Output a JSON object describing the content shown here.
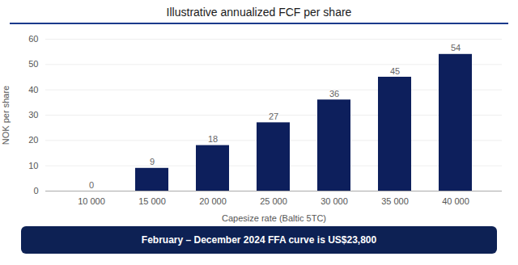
{
  "chart_data": {
    "type": "bar",
    "title": "Illustrative annualized FCF per share",
    "categories": [
      "10 000",
      "15 000",
      "20 000",
      "25 000",
      "30 000",
      "35 000",
      "40 000"
    ],
    "values": [
      0,
      9,
      18,
      27,
      36,
      45,
      54
    ],
    "color": "#0d1f5c",
    "xlabel": "Capesize rate (Baltic 5TC)",
    "ylabel": "NOK per share",
    "ylim": [
      0,
      60
    ],
    "yticks": [
      0,
      10,
      20,
      30,
      40,
      50,
      60
    ],
    "grid": true,
    "data_labels": true,
    "annotations": [
      "February – December 2024 FFA curve is US$23,800"
    ]
  }
}
